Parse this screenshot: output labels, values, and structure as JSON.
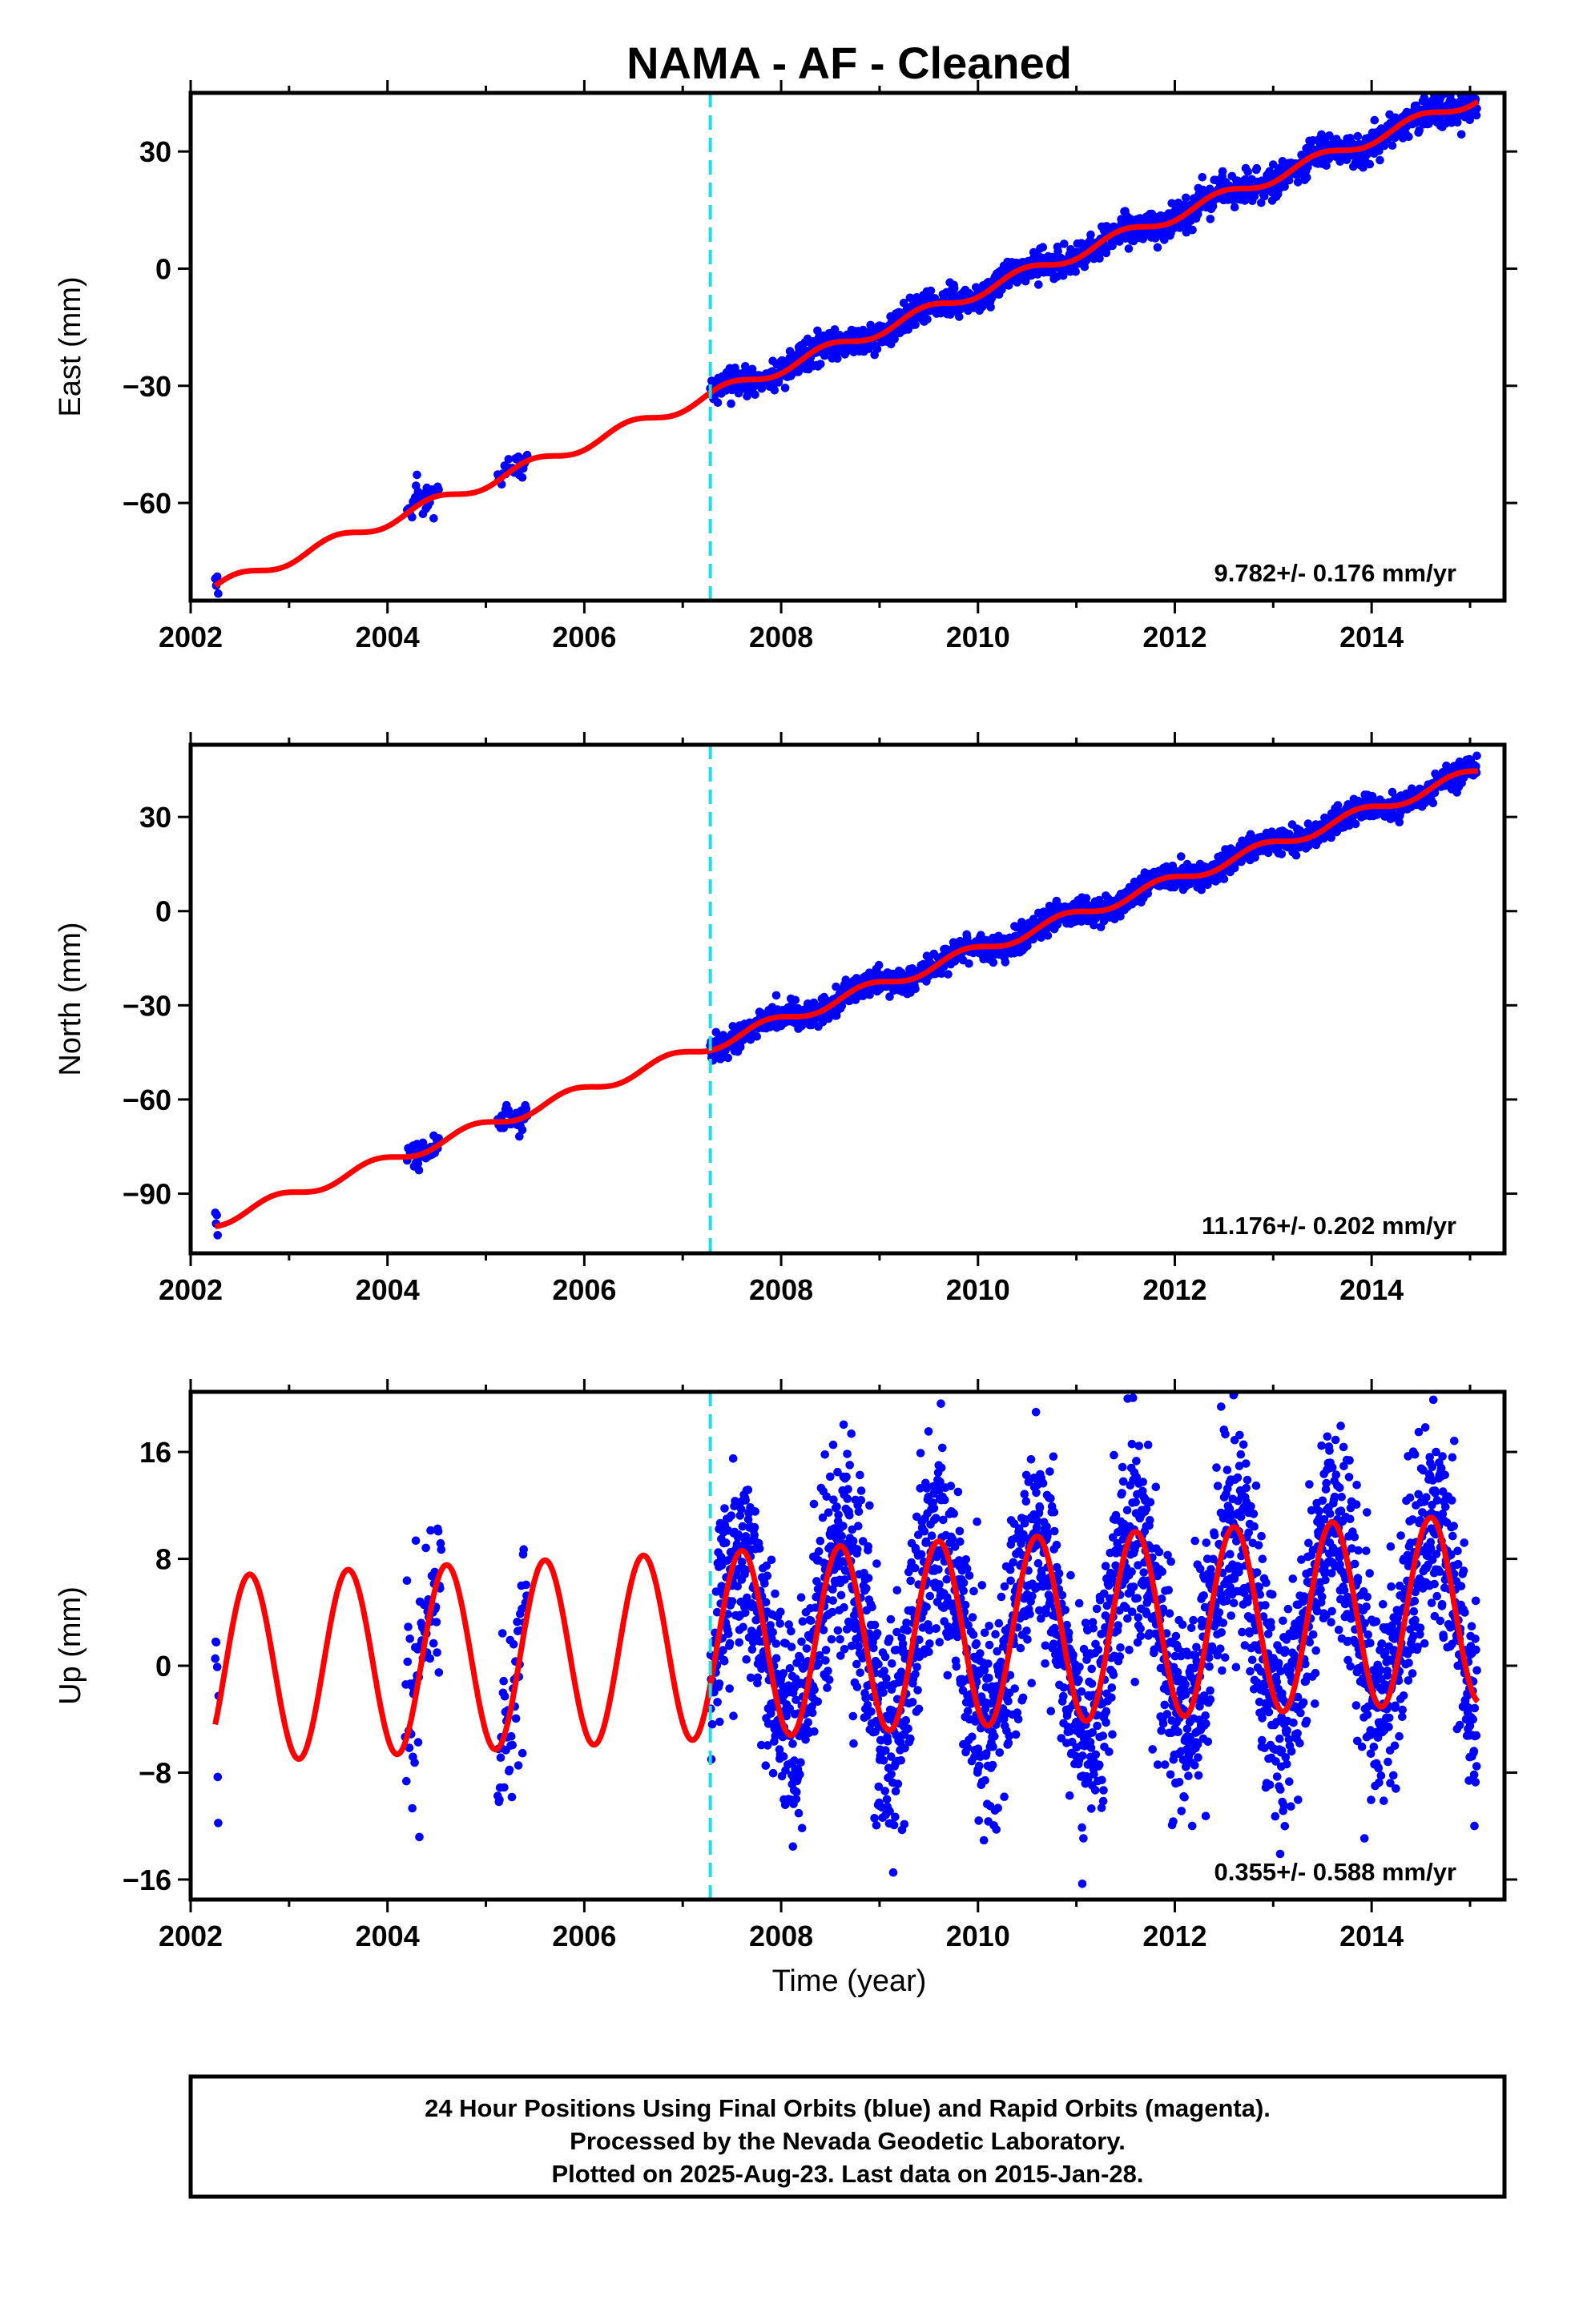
{
  "figure": {
    "title": "NAMA  - AF - Cleaned",
    "xlabel": "Time (year)",
    "footer": [
      "24 Hour Positions Using Final Orbits (blue) and Rapid Orbits (magenta).",
      "Processed by the Nevada Geodetic Laboratory.",
      "Plotted on 2025-Aug-23. Last data on 2015-Jan-28."
    ],
    "colors": {
      "final_orbits": "#0000ff",
      "model_fit": "#ff0000",
      "equipment_change_line": "#22dddd",
      "frame": "#000000"
    }
  },
  "chart_data": [
    {
      "type": "scatter",
      "panel": "east",
      "ylabel": "East (mm)",
      "xlim": [
        2002.0,
        2015.35
      ],
      "ylim": [
        -85,
        45
      ],
      "xticks": [
        2002,
        2004,
        2006,
        2008,
        2010,
        2012,
        2014
      ],
      "yticks": [
        30,
        0,
        -30,
        -60
      ],
      "ytick_labels": [
        "30",
        "0",
        "−30",
        "−60"
      ],
      "rate_label": "9.782+/- 0.176 mm/yr",
      "equipment_change": 2007.28,
      "trend": {
        "slope": 9.782,
        "intercept_year": 2002.25,
        "intercept_value": -81.7
      },
      "seasonal": {
        "amplitude": 1.5,
        "phase": 0.2
      },
      "data_segments": [
        {
          "start": 2002.25,
          "end": 2002.28,
          "scatter": 1.3,
          "step": 0.01
        },
        {
          "start": 2004.2,
          "end": 2004.52,
          "scatter": 2.6,
          "step": 0.01
        },
        {
          "start": 2005.12,
          "end": 2005.42,
          "scatter": 1.8,
          "step": 0.01
        },
        {
          "start": 2007.28,
          "end": 2015.07,
          "scatter": 1.9,
          "step": 0.0045
        }
      ]
    },
    {
      "type": "scatter",
      "panel": "north",
      "ylabel": "North (mm)",
      "xlim": [
        2002.0,
        2015.35
      ],
      "ylim": [
        -109,
        53
      ],
      "xticks": [
        2002,
        2004,
        2006,
        2008,
        2010,
        2012,
        2014
      ],
      "yticks": [
        30,
        0,
        -30,
        -60,
        -90
      ],
      "ytick_labels": [
        "30",
        "0",
        "−30",
        "−60",
        "−90"
      ],
      "rate_label": "11.176+/- 0.202 mm/yr",
      "equipment_change": 2007.28,
      "trend": {
        "slope": 11.176,
        "intercept_year": 2002.25,
        "intercept_value": -99.0
      },
      "seasonal": {
        "amplitude": 1.8,
        "phase": 0.6
      },
      "data_segments": [
        {
          "start": 2002.25,
          "end": 2002.28,
          "scatter": 3.0,
          "step": 0.008
        },
        {
          "start": 2004.2,
          "end": 2004.52,
          "scatter": 2.3,
          "step": 0.01
        },
        {
          "start": 2005.12,
          "end": 2005.42,
          "scatter": 2.0,
          "step": 0.01
        },
        {
          "start": 2007.28,
          "end": 2015.07,
          "scatter": 2.0,
          "step": 0.0045
        }
      ]
    },
    {
      "type": "scatter",
      "panel": "up",
      "ylabel": "Up (mm)",
      "xlim": [
        2002.0,
        2015.35
      ],
      "ylim": [
        -17.5,
        20.5
      ],
      "xticks": [
        2002,
        2004,
        2006,
        2008,
        2010,
        2012,
        2014
      ],
      "yticks": [
        16,
        8,
        0,
        -8,
        -16
      ],
      "ytick_labels": [
        "16",
        "8",
        "0",
        "−8",
        "−16"
      ],
      "rate_label": "0.355+/- 0.588 mm/yr",
      "equipment_change": 2007.28,
      "trend": {
        "slope": 0.355,
        "intercept_year": 2007.28,
        "intercept_value": 1.5
      },
      "seasonal": {
        "amplitude": 7.0,
        "phase": 0.35
      },
      "data_segments": [
        {
          "start": 2002.25,
          "end": 2002.29,
          "scatter": 6.5,
          "step": 0.005
        },
        {
          "start": 2004.18,
          "end": 2004.55,
          "scatter": 4.0,
          "step": 0.006
        },
        {
          "start": 2005.12,
          "end": 2005.42,
          "scatter": 4.0,
          "step": 0.006
        },
        {
          "start": 2007.28,
          "end": 2015.07,
          "scatter": 4.0,
          "step": 0.0028
        }
      ]
    }
  ]
}
